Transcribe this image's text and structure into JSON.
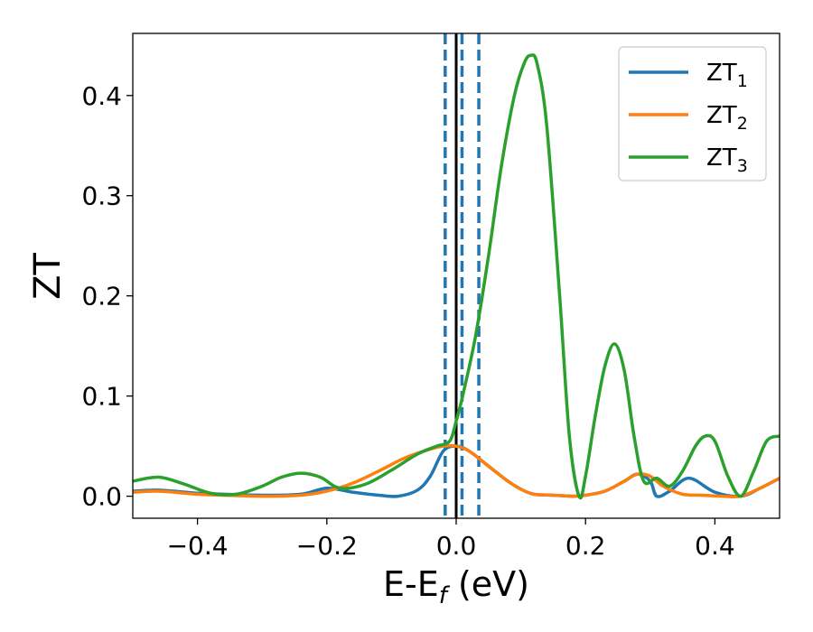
{
  "chart_data": {
    "type": "line",
    "title": "",
    "xlabel": "E-E",
    "xlabel_sub": "f",
    "xlabel_unit": " (eV)",
    "ylabel": "ZT",
    "xlim": [
      -0.5,
      0.5
    ],
    "ylim": [
      -0.022,
      0.462
    ],
    "xticks": [
      -0.4,
      -0.2,
      0.0,
      0.2,
      0.4
    ],
    "xtick_labels": [
      "−0.4",
      "−0.2",
      "0.0",
      "0.2",
      "0.4"
    ],
    "yticks": [
      0.0,
      0.1,
      0.2,
      0.3,
      0.4
    ],
    "ytick_labels": [
      "0.0",
      "0.1",
      "0.2",
      "0.3",
      "0.4"
    ],
    "grid": false,
    "legend_position": "top-right",
    "vlines": [
      {
        "x": 0.0,
        "style": "solid",
        "color": "#000000"
      },
      {
        "x": -0.017,
        "style": "dashed",
        "color": "#1f77b4"
      },
      {
        "x": 0.009,
        "style": "dashed",
        "color": "#1f77b4"
      },
      {
        "x": 0.035,
        "style": "dashed",
        "color": "#1f77b4"
      }
    ],
    "series": [
      {
        "name": "ZT",
        "name_sub": "1",
        "color": "#1f77b4",
        "x": [
          -0.5,
          -0.46,
          -0.4,
          -0.36,
          -0.3,
          -0.24,
          -0.2,
          -0.16,
          -0.12,
          -0.09,
          -0.06,
          -0.04,
          -0.02,
          0.0,
          0.02,
          0.05,
          0.08,
          0.1,
          0.12,
          0.15,
          0.18,
          0.2,
          0.23,
          0.26,
          0.28,
          0.3,
          0.31,
          0.33,
          0.36,
          0.4,
          0.44,
          0.47,
          0.5
        ],
        "y": [
          0.005,
          0.006,
          0.003,
          0.002,
          0.001,
          0.002,
          0.008,
          0.004,
          0.001,
          0.0,
          0.006,
          0.02,
          0.045,
          0.05,
          0.045,
          0.03,
          0.015,
          0.007,
          0.002,
          0.001,
          0.0,
          0.001,
          0.005,
          0.015,
          0.022,
          0.015,
          0.0,
          0.005,
          0.018,
          0.004,
          0.0,
          0.008,
          0.018
        ]
      },
      {
        "name": "ZT",
        "name_sub": "2",
        "color": "#ff7f0e",
        "x": [
          -0.5,
          -0.46,
          -0.4,
          -0.36,
          -0.3,
          -0.24,
          -0.2,
          -0.16,
          -0.12,
          -0.08,
          -0.04,
          -0.02,
          0.0,
          0.02,
          0.05,
          0.08,
          0.1,
          0.12,
          0.15,
          0.18,
          0.2,
          0.23,
          0.26,
          0.28,
          0.3,
          0.32,
          0.35,
          0.38,
          0.41,
          0.44,
          0.47,
          0.5
        ],
        "y": [
          0.004,
          0.005,
          0.002,
          0.001,
          0.0,
          0.001,
          0.005,
          0.013,
          0.025,
          0.038,
          0.047,
          0.05,
          0.05,
          0.045,
          0.03,
          0.015,
          0.007,
          0.002,
          0.001,
          0.0,
          0.001,
          0.005,
          0.015,
          0.022,
          0.02,
          0.01,
          0.002,
          0.001,
          0.0,
          0.0,
          0.008,
          0.018
        ]
      },
      {
        "name": "ZT",
        "name_sub": "3",
        "color": "#2ca02c",
        "x": [
          -0.5,
          -0.46,
          -0.42,
          -0.38,
          -0.34,
          -0.3,
          -0.27,
          -0.24,
          -0.21,
          -0.18,
          -0.14,
          -0.1,
          -0.06,
          -0.03,
          -0.01,
          0.0,
          0.01,
          0.03,
          0.05,
          0.07,
          0.09,
          0.105,
          0.115,
          0.125,
          0.14,
          0.16,
          0.175,
          0.19,
          0.2,
          0.215,
          0.23,
          0.245,
          0.26,
          0.275,
          0.29,
          0.31,
          0.33,
          0.35,
          0.37,
          0.385,
          0.4,
          0.42,
          0.44,
          0.46,
          0.48,
          0.5
        ],
        "y": [
          0.015,
          0.019,
          0.012,
          0.003,
          0.002,
          0.01,
          0.019,
          0.023,
          0.019,
          0.008,
          0.012,
          0.026,
          0.042,
          0.05,
          0.055,
          0.075,
          0.1,
          0.16,
          0.24,
          0.33,
          0.4,
          0.432,
          0.44,
          0.432,
          0.37,
          0.2,
          0.06,
          0.0,
          0.02,
          0.08,
          0.13,
          0.152,
          0.125,
          0.06,
          0.015,
          0.018,
          0.01,
          0.025,
          0.05,
          0.06,
          0.055,
          0.02,
          0.0,
          0.025,
          0.055,
          0.06
        ]
      }
    ]
  }
}
